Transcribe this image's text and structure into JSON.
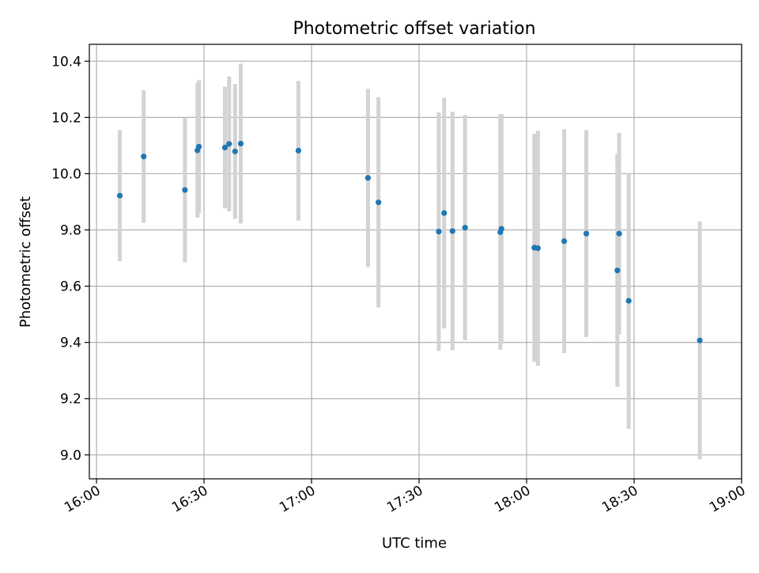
{
  "chart_data": {
    "type": "scatter",
    "title": "Photometric offset variation",
    "xlabel": "UTC time",
    "ylabel": "Photometric offset",
    "x_ticks": [
      "16:00",
      "16:30",
      "17:00",
      "17:30",
      "18:00",
      "18:30",
      "19:00"
    ],
    "y_ticks": [
      "9.0",
      "9.2",
      "9.4",
      "9.6",
      "9.8",
      "10.0",
      "10.2",
      "10.4"
    ],
    "x_range": [
      "15:58",
      "19:00"
    ],
    "ylim": [
      8.915,
      10.46
    ],
    "grid": true,
    "colors": {
      "point": "#1f77b4",
      "errorbar": "#d3d3d3",
      "grid": "#b0b0b0"
    },
    "points": [
      {
        "x": "16:06:30",
        "y": 9.922,
        "err": 0.233
      },
      {
        "x": "16:13:10",
        "y": 10.061,
        "err": 0.236
      },
      {
        "x": "16:24:40",
        "y": 9.942,
        "err": 0.257
      },
      {
        "x": "16:28:10",
        "y": 10.083,
        "err": 0.239
      },
      {
        "x": "16:28:35",
        "y": 10.096,
        "err": 0.236
      },
      {
        "x": "16:35:50",
        "y": 10.093,
        "err": 0.216
      },
      {
        "x": "16:37:00",
        "y": 10.106,
        "err": 0.24
      },
      {
        "x": "16:38:40",
        "y": 10.079,
        "err": 0.24
      },
      {
        "x": "16:40:15",
        "y": 10.107,
        "err": 0.284
      },
      {
        "x": "16:56:20",
        "y": 10.082,
        "err": 0.248
      },
      {
        "x": "17:15:45",
        "y": 9.985,
        "err": 0.317
      },
      {
        "x": "17:18:40",
        "y": 9.898,
        "err": 0.374
      },
      {
        "x": "17:35:30",
        "y": 9.794,
        "err": 0.424
      },
      {
        "x": "17:37:00",
        "y": 9.86,
        "err": 0.41
      },
      {
        "x": "17:39:20",
        "y": 9.796,
        "err": 0.424
      },
      {
        "x": "17:42:50",
        "y": 9.808,
        "err": 0.4
      },
      {
        "x": "17:52:40",
        "y": 9.792,
        "err": 0.418
      },
      {
        "x": "17:53:00",
        "y": 9.804,
        "err": 0.408
      },
      {
        "x": "18:02:10",
        "y": 9.737,
        "err": 0.405
      },
      {
        "x": "18:03:10",
        "y": 9.735,
        "err": 0.418
      },
      {
        "x": "18:10:30",
        "y": 9.76,
        "err": 0.398
      },
      {
        "x": "18:16:40",
        "y": 9.787,
        "err": 0.368
      },
      {
        "x": "18:25:20",
        "y": 9.656,
        "err": 0.414
      },
      {
        "x": "18:25:50",
        "y": 9.787,
        "err": 0.358
      },
      {
        "x": "18:28:30",
        "y": 9.548,
        "err": 0.455
      },
      {
        "x": "18:48:20",
        "y": 9.407,
        "err": 0.423
      }
    ]
  }
}
